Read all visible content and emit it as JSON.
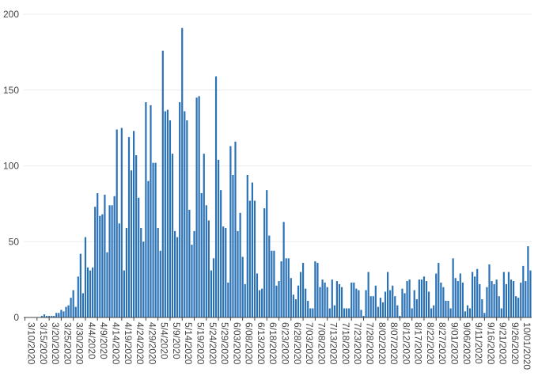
{
  "chart_data": {
    "type": "bar",
    "title": "",
    "xlabel": "",
    "ylabel": "",
    "ylim": [
      0,
      200
    ],
    "yticks": [
      0,
      50,
      100,
      150,
      200
    ],
    "grid": true,
    "bar_color": "#2a72b5",
    "x_start": "2020-03-10",
    "x_end": "2020-10-03",
    "x_tick_labels": [
      "3/10/2020",
      "3/15/2020",
      "3/20/2020",
      "3/25/2020",
      "3/30/2020",
      "4/4/2020",
      "4/9/2020",
      "4/14/2020",
      "4/19/2020",
      "4/24/2020",
      "4/29/2020",
      "5/4/2020",
      "5/9/2020",
      "5/14/2020",
      "5/19/2020",
      "5/24/2020",
      "5/29/2020",
      "6/03/2020",
      "6/08/2020",
      "6/13/2020",
      "6/18/2020",
      "6/23/2020",
      "6/28/2020",
      "7/03/2020",
      "7/08/2020",
      "7/13/2020",
      "7/18/2020",
      "7/23/2020",
      "7/28/2020",
      "8/02/2020",
      "8/07/2020",
      "8/12/2020",
      "8/17/2020",
      "8/22/2020",
      "8/27/2020",
      "9/01/2020",
      "9/06/2020",
      "9/11/2020",
      "9/16/2020",
      "9/21/2020",
      "9/26/2020",
      "10/01/2020"
    ],
    "values": [
      0,
      0,
      0,
      0,
      0,
      0,
      0,
      1,
      2,
      1,
      1,
      1,
      1,
      3,
      3,
      5,
      4,
      7,
      8,
      13,
      18,
      7,
      27,
      42,
      16,
      53,
      33,
      31,
      33,
      73,
      82,
      67,
      68,
      81,
      43,
      74,
      74,
      80,
      124,
      62,
      125,
      31,
      59,
      119,
      97,
      123,
      107,
      79,
      59,
      50,
      142,
      90,
      140,
      102,
      102,
      59,
      44,
      176,
      136,
      137,
      130,
      108,
      57,
      53,
      142,
      191,
      136,
      130,
      71,
      48,
      57,
      145,
      146,
      82,
      108,
      74,
      64,
      31,
      39,
      159,
      104,
      84,
      60,
      59,
      23,
      113,
      94,
      116,
      57,
      69,
      40,
      22,
      94,
      77,
      89,
      77,
      29,
      18,
      19,
      72,
      84,
      54,
      44,
      44,
      21,
      24,
      37,
      63,
      39,
      39,
      26,
      15,
      12,
      21,
      30,
      36,
      19,
      11,
      6,
      6,
      37,
      36,
      20,
      25,
      23,
      20,
      6,
      25,
      8,
      24,
      22,
      20,
      6,
      6,
      6,
      23,
      23,
      19,
      18,
      5,
      1,
      18,
      30,
      14,
      14,
      21,
      7,
      13,
      10,
      17,
      30,
      18,
      21,
      14,
      8,
      1,
      19,
      16,
      24,
      25,
      6,
      18,
      12,
      25,
      25,
      27,
      24,
      17,
      6,
      8,
      29,
      36,
      23,
      20,
      11,
      11,
      6,
      39,
      26,
      24,
      29,
      23,
      4,
      8,
      6,
      30,
      27,
      32,
      22,
      12,
      3,
      20,
      35,
      24,
      22,
      25,
      14,
      6,
      30,
      22,
      30,
      25,
      24,
      14,
      13,
      23,
      34,
      24,
      47,
      31
    ]
  }
}
